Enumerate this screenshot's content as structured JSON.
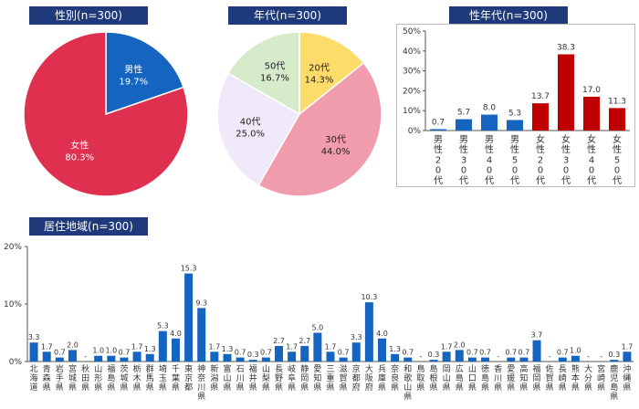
{
  "chart_data": [
    {
      "id": "gender",
      "type": "pie",
      "title": "性別(n=300)",
      "slices": [
        {
          "label": "男性",
          "value": 19.7,
          "display": "19.7%",
          "color": "#1565c0"
        },
        {
          "label": "女性",
          "value": 80.3,
          "display": "80.3%",
          "color": "#e0304f"
        }
      ]
    },
    {
      "id": "age",
      "type": "pie",
      "title": "年代(n=300)",
      "slices": [
        {
          "label": "20代",
          "value": 14.3,
          "display": "14.3%",
          "color": "#fddc6a"
        },
        {
          "label": "30代",
          "value": 44.0,
          "display": "44.0%",
          "color": "#f09cad"
        },
        {
          "label": "40代",
          "value": 25.0,
          "display": "25.0%",
          "color": "#efe9fa"
        },
        {
          "label": "50代",
          "value": 16.7,
          "display": "16.7%",
          "color": "#d6ebc9"
        }
      ]
    },
    {
      "id": "gender_age",
      "type": "bar",
      "title": "性年代(n=300)",
      "categories": [
        "男性20代",
        "男性30代",
        "男性40代",
        "男性50代",
        "女性20代",
        "女性30代",
        "女性40代",
        "女性50代"
      ],
      "values": [
        0.7,
        5.7,
        8.0,
        5.3,
        13.7,
        38.3,
        17.0,
        11.3
      ],
      "labels": [
        "0.7",
        "5.7",
        "8.0",
        "5.3",
        "13.7",
        "38.3",
        "17.0",
        "11.3"
      ],
      "colors": [
        "#1565c0",
        "#1565c0",
        "#1565c0",
        "#1565c0",
        "#c00000",
        "#c00000",
        "#c00000",
        "#c00000"
      ],
      "ylim": [
        0,
        50
      ],
      "yticks": [
        "0%",
        "10%",
        "20%",
        "30%",
        "40%",
        "50%"
      ]
    },
    {
      "id": "region",
      "type": "bar",
      "title": "居住地域(n=300)",
      "categories": [
        "北海道",
        "青森県",
        "岩手県",
        "宮城県",
        "秋田県",
        "山形県",
        "福島県",
        "茨城県",
        "栃木県",
        "群馬県",
        "埼玉県",
        "千葉県",
        "東京都",
        "神奈川県",
        "新潟県",
        "富山県",
        "石川県",
        "福井県",
        "山梨県",
        "長野県",
        "岐阜県",
        "静岡県",
        "愛知県",
        "三重県",
        "滋賀県",
        "京都府",
        "大阪府",
        "兵庫県",
        "奈良県",
        "和歌山県",
        "鳥取県",
        "島根県",
        "岡山県",
        "広島県",
        "山口県",
        "徳島県",
        "香川県",
        "愛媛県",
        "高知県",
        "福岡県",
        "佐賀県",
        "長崎県",
        "熊本県",
        "大分県",
        "宮崎県",
        "鹿児島県",
        "沖縄県"
      ],
      "values": [
        3.3,
        1.7,
        0.7,
        2.0,
        0,
        1.0,
        1.0,
        0.7,
        1.7,
        1.3,
        5.3,
        4.0,
        15.3,
        9.3,
        1.7,
        1.3,
        0.7,
        0.3,
        0.7,
        2.7,
        1.7,
        2.7,
        5.0,
        1.7,
        0.7,
        3.3,
        10.3,
        4.0,
        1.3,
        0.7,
        0,
        0.3,
        1.7,
        2.0,
        0.7,
        0.7,
        0,
        0.7,
        0.7,
        3.7,
        0,
        0.7,
        1.0,
        0,
        0,
        0.3,
        1.7
      ],
      "labels": [
        "3.3",
        "1.7",
        "0.7",
        "2.0",
        "-",
        "1.0",
        "1.0",
        "0.7",
        "1.7",
        "1.3",
        "5.3",
        "4.0",
        "15.3",
        "9.3",
        "1.7",
        "1.3",
        "0.7",
        "0.3",
        "0.7",
        "2.7",
        "1.7",
        "2.7",
        "5.0",
        "1.7",
        "0.7",
        "3.3",
        "10.3",
        "4.0",
        "1.3",
        "0.7",
        "-",
        "0.3",
        "1.7",
        "2.0",
        "0.7",
        "0.7",
        "-",
        "0.7",
        "0.7",
        "3.7",
        "-",
        "0.7",
        "1.0",
        "-",
        "-",
        "0.3",
        "1.7"
      ],
      "color": "#1565c0",
      "ylim": [
        0,
        20
      ],
      "yticks": [
        "0%",
        "10%",
        "20%"
      ]
    }
  ]
}
